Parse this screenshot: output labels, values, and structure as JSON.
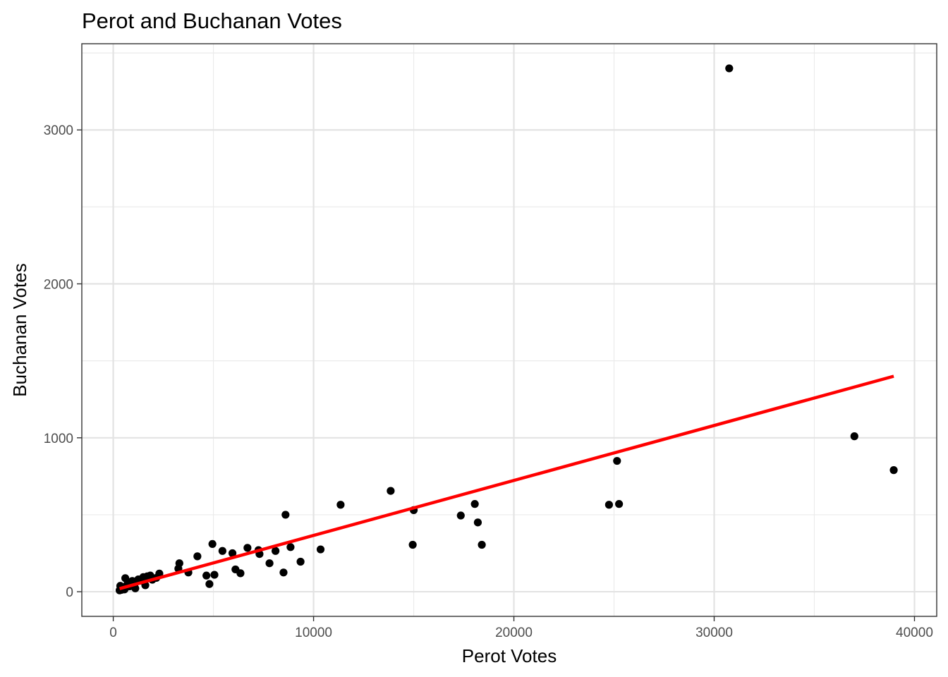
{
  "chart_data": {
    "type": "scatter",
    "title": "Perot and Buchanan Votes",
    "xlabel": "Perot Votes",
    "ylabel": "Buchanan Votes",
    "xlim": [
      -1570,
      41110
    ],
    "ylim": [
      -160,
      3560
    ],
    "x_ticks": [
      0,
      10000,
      20000,
      30000,
      40000
    ],
    "x_tick_labels": [
      "0",
      "10000",
      "20000",
      "30000",
      "40000"
    ],
    "y_ticks": [
      0,
      1000,
      2000,
      3000
    ],
    "y_tick_labels": [
      "0",
      "1000",
      "2000",
      "3000"
    ],
    "x_minor_ticks": [
      5000,
      15000,
      25000,
      35000
    ],
    "y_minor_ticks": [
      500,
      1500,
      2500,
      3500
    ],
    "grid": true,
    "theme": "black-and-white panel border",
    "point_color": "#000000",
    "fit_line_color": "#ff0000",
    "fit_line": {
      "type": "linear",
      "points": [
        [
          316,
          20
        ],
        [
          38964,
          1400
        ]
      ]
    },
    "points": [
      [
        316,
        9
      ],
      [
        350,
        38
      ],
      [
        410,
        12
      ],
      [
        470,
        18
      ],
      [
        530,
        25
      ],
      [
        560,
        15
      ],
      [
        600,
        88
      ],
      [
        650,
        30
      ],
      [
        700,
        48
      ],
      [
        760,
        62
      ],
      [
        820,
        35
      ],
      [
        880,
        55
      ],
      [
        950,
        70
      ],
      [
        1050,
        40
      ],
      [
        1100,
        22
      ],
      [
        1150,
        65
      ],
      [
        1250,
        80
      ],
      [
        1350,
        72
      ],
      [
        1500,
        95
      ],
      [
        1600,
        42
      ],
      [
        1700,
        100
      ],
      [
        1850,
        105
      ],
      [
        1950,
        78
      ],
      [
        2150,
        90
      ],
      [
        2300,
        118
      ],
      [
        3250,
        150
      ],
      [
        3300,
        185
      ],
      [
        3750,
        125
      ],
      [
        4200,
        230
      ],
      [
        4650,
        105
      ],
      [
        4800,
        50
      ],
      [
        4950,
        310
      ],
      [
        5050,
        110
      ],
      [
        5450,
        265
      ],
      [
        5950,
        250
      ],
      [
        6100,
        145
      ],
      [
        6350,
        120
      ],
      [
        6700,
        285
      ],
      [
        7250,
        270
      ],
      [
        7300,
        245
      ],
      [
        7800,
        185
      ],
      [
        8100,
        265
      ],
      [
        8500,
        125
      ],
      [
        8600,
        500
      ],
      [
        8850,
        290
      ],
      [
        9350,
        195
      ],
      [
        10350,
        275
      ],
      [
        11350,
        565
      ],
      [
        13850,
        655
      ],
      [
        14950,
        305
      ],
      [
        15000,
        530
      ],
      [
        17350,
        495
      ],
      [
        18050,
        570
      ],
      [
        18200,
        450
      ],
      [
        18400,
        305
      ],
      [
        24750,
        565
      ],
      [
        25150,
        850
      ],
      [
        25250,
        570
      ],
      [
        30750,
        3400
      ],
      [
        37000,
        1010
      ],
      [
        38964,
        790
      ]
    ]
  }
}
